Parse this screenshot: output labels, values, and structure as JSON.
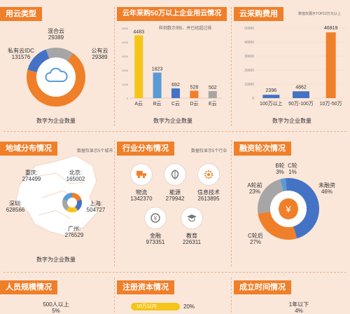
{
  "colors": {
    "orange": "#f07f2a",
    "blue": "#4472c4",
    "yellow": "#f5c518",
    "gray": "#a6a6a6",
    "lightblue": "#5b9bd5"
  },
  "cloud_type": {
    "title": "用云类型",
    "caption": "数字为企业数量",
    "labels": [
      {
        "name": "混合云",
        "value": "29389"
      },
      {
        "name": "私有云IDC",
        "value": "131576"
      },
      {
        "name": "公有云",
        "value": "29389"
      }
    ]
  },
  "cloud_usage": {
    "title": "云年采购50万以上企业用云情况",
    "note": "样例数示例5、并已经超过排",
    "caption": "数字为企业数量"
  },
  "cloud_cost": {
    "title": "云采购费用",
    "note": "数值仅展示TOP10万元以上",
    "caption": "数字为企业数量"
  },
  "region": {
    "title": "地域分布情况",
    "note": "数据仅显示5个城市",
    "caption": "数字为企业数量",
    "cities": [
      {
        "name": "重庆:",
        "value": "274499"
      },
      {
        "name": "北京:",
        "value": "165002"
      },
      {
        "name": "深圳:",
        "value": "628566"
      },
      {
        "name": "上海:",
        "value": "504727"
      },
      {
        "name": "广州:",
        "value": "276529"
      }
    ]
  },
  "industry": {
    "title": "行业分布情况",
    "note": "数据仅显示5个行业",
    "items": [
      {
        "name": "物流",
        "value": "1342370",
        "icon": "truck-icon"
      },
      {
        "name": "能源",
        "value": "279942",
        "icon": "leaf-icon"
      },
      {
        "name": "信息技术",
        "value": "2613895",
        "icon": "gear-icon"
      },
      {
        "name": "金融",
        "value": "973351",
        "icon": "yen-coin-icon"
      },
      {
        "name": "教育",
        "value": "226311",
        "icon": "graduation-cap-icon"
      }
    ]
  },
  "financing": {
    "title": "融资轮次情况",
    "labels": [
      {
        "name": "B轮",
        "pct": "3%"
      },
      {
        "name": "C轮",
        "pct": "1%"
      },
      {
        "name": "A轮前",
        "pct": "23%"
      },
      {
        "name": "未融资",
        "pct": "46%"
      },
      {
        "name": "C轮后",
        "pct": "27%"
      }
    ]
  },
  "staff": {
    "title": "人员规模情况",
    "label": "500人以上",
    "pct": "5%"
  },
  "capital": {
    "title": "注册资本情况",
    "label": "10万以内",
    "pct": "20%"
  },
  "founded": {
    "title": "成立时间情况",
    "label": "1年以下",
    "pct": "4%"
  },
  "chart_data": [
    {
      "type": "pie",
      "title": "用云类型",
      "categories": [
        "公有云",
        "私有云IDC",
        "混合云"
      ],
      "values": [
        29389,
        131576,
        29389
      ]
    },
    {
      "type": "bar",
      "title": "云年采购50万以上企业用云情况",
      "categories": [
        "A云",
        "B云",
        "C云",
        "D云",
        "E云"
      ],
      "values": [
        4483,
        1823,
        692,
        528,
        502
      ],
      "ylim": [
        0,
        5000
      ]
    },
    {
      "type": "bar",
      "title": "云采购费用",
      "categories": [
        "100万以上",
        "50万-100万",
        "10万-50万"
      ],
      "values": [
        2396,
        4862,
        46919
      ],
      "yticks": [
        "0",
        "10000",
        "20000",
        "30000",
        "40000",
        "50000"
      ],
      "ylim": [
        0,
        50000
      ]
    },
    {
      "type": "pie",
      "title": "融资轮次情况",
      "categories": [
        "未融资",
        "C轮后",
        "A轮前",
        "B轮",
        "C轮"
      ],
      "values": [
        46,
        27,
        23,
        3,
        1
      ],
      "unit": "%"
    }
  ]
}
